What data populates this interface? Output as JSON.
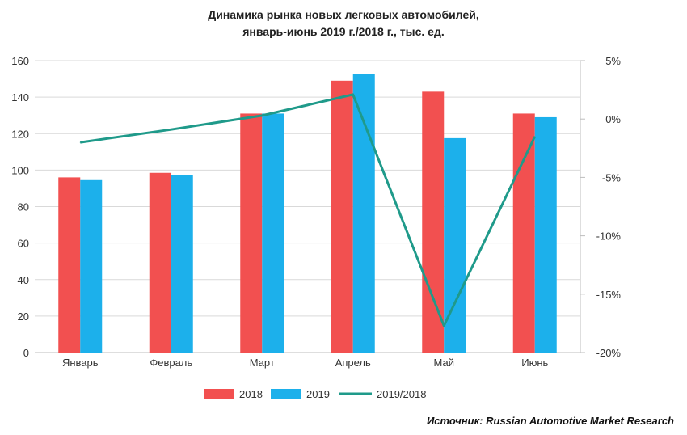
{
  "chart_data": {
    "type": "bar",
    "title": [
      "Динамика рынка новых легковых автомобилей,",
      "январь-июнь 2019 г./2018 г., тыс. ед."
    ],
    "categories": [
      "Январь",
      "Февраль",
      "Март",
      "Апрель",
      "Май",
      "Июнь"
    ],
    "series": [
      {
        "name": "2018",
        "type": "bar",
        "axis": "left",
        "color": "#f25050",
        "values": [
          96,
          98.5,
          131,
          149,
          143,
          131
        ]
      },
      {
        "name": "2019",
        "type": "bar",
        "axis": "right-none",
        "color": "#1cb0eb",
        "values": [
          94.5,
          97.5,
          131,
          152.5,
          117.5,
          129
        ]
      },
      {
        "name": "2019/2018",
        "type": "line",
        "axis": "right",
        "color": "#1f9a8a",
        "values": [
          -2.0,
          -0.9,
          0.3,
          2.1,
          -17.7,
          -1.5
        ]
      }
    ],
    "y_left": {
      "min": 0,
      "max": 160,
      "ticks": [
        "0",
        "20",
        "40",
        "60",
        "80",
        "100",
        "120",
        "140",
        "160"
      ]
    },
    "y_right": {
      "min": -20,
      "max": 5,
      "ticks": [
        "-20%",
        "-15%",
        "-10%",
        "-5%",
        "0%",
        "5%"
      ]
    },
    "grid": true,
    "legend_position": "bottom"
  },
  "source": "Источник: Russian Automotive Market Research"
}
